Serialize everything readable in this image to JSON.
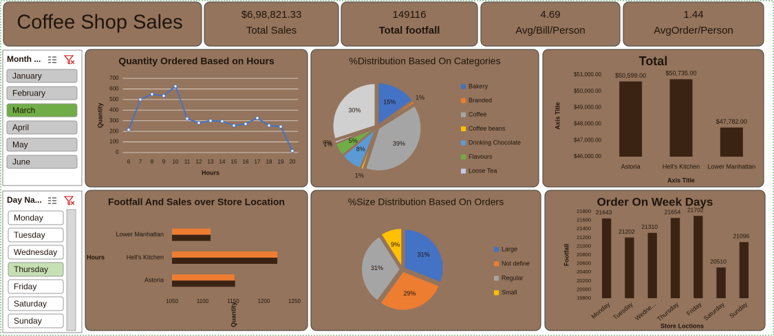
{
  "header": {
    "title": "Coffee Shop Sales"
  },
  "kpis": [
    {
      "value": "$6,98,821.33",
      "label": "Total Sales"
    },
    {
      "value": "149116",
      "label": "Total footfall"
    },
    {
      "value": "4.69",
      "label": "Avg/Bill/Person"
    },
    {
      "value": "1.44",
      "label": "AvgOrder/Person"
    }
  ],
  "slicers": [
    {
      "title": "Month ...",
      "items": [
        "January",
        "February",
        "March",
        "April",
        "May",
        "June"
      ],
      "selected": "March"
    },
    {
      "title": "Day Na...",
      "items": [
        "Monday",
        "Tuesday",
        "Wednesday",
        "Thursday",
        "Friday",
        "Saturday",
        "Sunday"
      ],
      "selected": "Thursday"
    }
  ],
  "chart_data": [
    {
      "type": "line",
      "title": "Quantity Ordered Based on Hours",
      "x": [
        6,
        7,
        8,
        9,
        10,
        11,
        12,
        13,
        14,
        15,
        16,
        17,
        18,
        19,
        20
      ],
      "values": [
        215,
        500,
        550,
        535,
        625,
        320,
        280,
        300,
        295,
        255,
        270,
        325,
        255,
        245,
        15
      ],
      "color": "#4472c4",
      "xlabel": "Hours",
      "ylabel": "Quantity",
      "xlim": [
        5.5,
        20.5
      ],
      "xticks": [
        6,
        7,
        8,
        9,
        10,
        11,
        12,
        13,
        14,
        15,
        16,
        17,
        18,
        19,
        20
      ],
      "ylim": [
        0,
        700
      ],
      "yticks": [
        0,
        100,
        200,
        300,
        400,
        500,
        600,
        700
      ],
      "grid": true
    },
    {
      "type": "pie",
      "title": "%Distribution Based On Categories",
      "categories": [
        "Bakery",
        "Branded",
        "Coffee",
        "Coffee beans",
        "Drinking Chocolate",
        "Flavours",
        "Loose Tea",
        null,
        null
      ],
      "values": [
        15,
        1,
        39,
        1,
        8,
        5,
        1,
        0,
        30
      ],
      "value_labels": [
        "15%",
        "1%",
        "39%",
        "1%",
        "8%",
        "5%",
        "1%",
        "0%",
        "30%"
      ],
      "colors": [
        "#4472c4",
        "#ed7d31",
        "#a5a5a5",
        "#ffc000",
        "#5b9bd5",
        "#70ad47",
        "#c9c9e8",
        "#264478",
        "#d0d0d0"
      ],
      "legend": "right"
    },
    {
      "type": "bar",
      "title": "Total",
      "categories": [
        "Astoria",
        "Hell's Kitchen",
        "Lower Manhattan"
      ],
      "values": [
        50599,
        50735,
        47782
      ],
      "value_labels": [
        "$50,599.00",
        "$50,735.00",
        "$47,782.00"
      ],
      "color": "#3b2314",
      "xlabel": "Axis Title",
      "ylabel": "Axis Title",
      "ylim": [
        46000,
        51000
      ],
      "yticks": [
        {
          "value": 46000,
          "label": "$46,000.00"
        },
        {
          "value": 47000,
          "label": "$47,000.00"
        },
        {
          "value": 48000,
          "label": "$48,000.00"
        },
        {
          "value": 49000,
          "label": "$49,000.00"
        },
        {
          "value": 50000,
          "label": "$50,000.00"
        },
        {
          "value": 51000,
          "label": "$51,000.00"
        }
      ],
      "grid": false
    },
    {
      "type": "hbar",
      "title": "Footfall And Sales over Store Location",
      "categories": [
        "Astoria",
        "Hell's Kitchen",
        "Lower Manhattan"
      ],
      "series": [
        {
          "color": "#ed7d31",
          "values": [
            1152,
            1222,
            1113
          ]
        },
        {
          "color": "#3b2314",
          "values": [
            1153,
            1222,
            1113
          ]
        }
      ],
      "xlabel": "Quantity",
      "ylabel": "Hours",
      "xlim": [
        1050,
        1250
      ],
      "xticks": [
        1050,
        1100,
        1150,
        1200,
        1250
      ],
      "grid": false
    },
    {
      "type": "pie",
      "title": "%Size Distribution Based  On Orders",
      "categories": [
        "Large",
        "Not define",
        "Regular",
        "Small"
      ],
      "values": [
        31,
        29,
        31,
        9
      ],
      "value_labels": [
        "31%",
        "29%",
        "31%",
        "9%"
      ],
      "colors": [
        "#4472c4",
        "#ed7d31",
        "#a5a5a5",
        "#ffc000"
      ],
      "legend": "right"
    },
    {
      "type": "bar",
      "title": "Order On Week Days",
      "categories": [
        "Monday",
        "Tuesday",
        "Wedne...",
        "Thursday",
        "Friday",
        "Saturday",
        "Sunday"
      ],
      "values": [
        21643,
        21202,
        21310,
        21654,
        21702,
        20510,
        21096
      ],
      "color": "#3b2314",
      "xlabel": "Store Loctions",
      "ylabel": "Footfall",
      "ylim": [
        19800,
        21800
      ],
      "yticks": [
        19800,
        20000,
        20200,
        20400,
        20600,
        20800,
        21000,
        21200,
        21400,
        21600,
        21800
      ],
      "grid": false
    }
  ]
}
